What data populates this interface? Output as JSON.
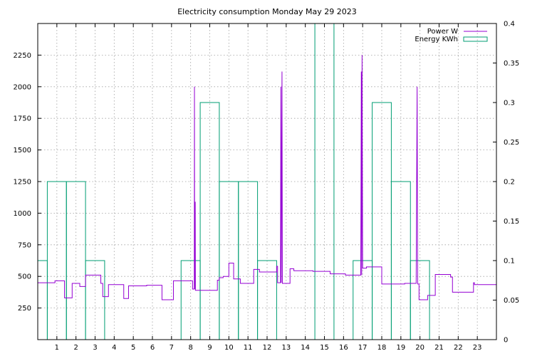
{
  "chart_data": {
    "type": "line",
    "title": "Electricity consumption Monday May 29 2023",
    "x": {
      "min": 0,
      "max": 24,
      "ticks": [
        1,
        2,
        3,
        4,
        5,
        6,
        7,
        8,
        9,
        10,
        11,
        12,
        13,
        14,
        15,
        16,
        17,
        18,
        19,
        20,
        21,
        22,
        23
      ],
      "tick_labels": [
        "1",
        "2",
        "3",
        "4",
        "5",
        "6",
        "7",
        "8",
        "9",
        "10",
        "11",
        "12",
        "13",
        "14",
        "15",
        "16",
        "17",
        "18",
        "19",
        "20",
        "21",
        "22",
        "23"
      ]
    },
    "y_left": {
      "min": 0,
      "max": 2500,
      "ticks": [
        250,
        500,
        750,
        1000,
        1250,
        1500,
        1750,
        2000,
        2250
      ],
      "tick_labels": [
        "250",
        "500",
        "750",
        "1000",
        "1250",
        "1500",
        "1750",
        "2000",
        "2250"
      ]
    },
    "y_right": {
      "min": 0,
      "max": 0.4,
      "ticks": [
        0,
        0.05,
        0.1,
        0.15,
        0.2,
        0.25,
        0.3,
        0.35,
        0.4
      ],
      "tick_labels": [
        "0",
        "0.05",
        "0.1",
        "0.15",
        "0.2",
        "0.25",
        "0.3",
        "0.35",
        "0.4"
      ]
    },
    "grid": true,
    "legend_position": "top-right",
    "series": [
      {
        "name": "Power W",
        "axis": "left",
        "color": "#9400d3",
        "style": "step",
        "points": [
          [
            0,
            450
          ],
          [
            0.9,
            450
          ],
          [
            0.9,
            465
          ],
          [
            1.4,
            465
          ],
          [
            1.4,
            330
          ],
          [
            1.8,
            330
          ],
          [
            1.8,
            445
          ],
          [
            2.2,
            445
          ],
          [
            2.2,
            420
          ],
          [
            2.5,
            420
          ],
          [
            2.5,
            510
          ],
          [
            3.3,
            510
          ],
          [
            3.3,
            445
          ],
          [
            3.4,
            445
          ],
          [
            3.4,
            340
          ],
          [
            3.7,
            340
          ],
          [
            3.7,
            435
          ],
          [
            4.5,
            435
          ],
          [
            4.5,
            325
          ],
          [
            4.75,
            325
          ],
          [
            4.75,
            425
          ],
          [
            5.7,
            425
          ],
          [
            5.7,
            430
          ],
          [
            6.5,
            430
          ],
          [
            6.5,
            315
          ],
          [
            7.1,
            315
          ],
          [
            7.1,
            465
          ],
          [
            8.1,
            465
          ],
          [
            8.1,
            400
          ],
          [
            8.19,
            400
          ],
          [
            8.2,
            2000
          ],
          [
            8.21,
            400
          ],
          [
            8.24,
            1090
          ],
          [
            8.25,
            390
          ],
          [
            9.4,
            390
          ],
          [
            9.4,
            470
          ],
          [
            9.5,
            470
          ],
          [
            9.5,
            490
          ],
          [
            9.7,
            490
          ],
          [
            9.7,
            500
          ],
          [
            10,
            500
          ],
          [
            10,
            605
          ],
          [
            10.25,
            605
          ],
          [
            10.25,
            480
          ],
          [
            10.6,
            480
          ],
          [
            10.6,
            445
          ],
          [
            11.3,
            445
          ],
          [
            11.3,
            555
          ],
          [
            11.6,
            555
          ],
          [
            11.6,
            535
          ],
          [
            12.5,
            535
          ],
          [
            12.5,
            580
          ],
          [
            12.55,
            580
          ],
          [
            12.55,
            450
          ],
          [
            12.7,
            450
          ],
          [
            12.72,
            2000
          ],
          [
            12.74,
            450
          ],
          [
            12.78,
            2120
          ],
          [
            12.8,
            445
          ],
          [
            13.2,
            445
          ],
          [
            13.2,
            560
          ],
          [
            13.4,
            560
          ],
          [
            13.4,
            545
          ],
          [
            14.4,
            545
          ],
          [
            14.4,
            540
          ],
          [
            15.3,
            540
          ],
          [
            15.3,
            520
          ],
          [
            16.1,
            520
          ],
          [
            16.1,
            510
          ],
          [
            16.9,
            510
          ],
          [
            16.93,
            2120
          ],
          [
            16.95,
            510
          ],
          [
            16.97,
            2250
          ],
          [
            17,
            565
          ],
          [
            17.2,
            565
          ],
          [
            17.2,
            575
          ],
          [
            18,
            575
          ],
          [
            18,
            440
          ],
          [
            19.2,
            440
          ],
          [
            19.2,
            445
          ],
          [
            19.8,
            445
          ],
          [
            19.85,
            2000
          ],
          [
            19.88,
            440
          ],
          [
            19.95,
            440
          ],
          [
            19.95,
            315
          ],
          [
            20.4,
            315
          ],
          [
            20.4,
            350
          ],
          [
            20.8,
            350
          ],
          [
            20.8,
            515
          ],
          [
            21.6,
            515
          ],
          [
            21.6,
            495
          ],
          [
            21.7,
            495
          ],
          [
            21.7,
            375
          ],
          [
            22.8,
            375
          ],
          [
            22.8,
            450
          ],
          [
            22.85,
            450
          ],
          [
            22.85,
            435
          ],
          [
            24,
            435
          ]
        ]
      },
      {
        "name": "Energy KWh",
        "axis": "right",
        "color": "#009e73",
        "style": "histep",
        "values": [
          0.1,
          0.2,
          0.2,
          0.1,
          0,
          0,
          0,
          0,
          0.1,
          0.3,
          0.2,
          0.2,
          0.1,
          0,
          0,
          0.4,
          0,
          0.1,
          0.3,
          0.2,
          0.1,
          0,
          0,
          0
        ]
      }
    ]
  }
}
